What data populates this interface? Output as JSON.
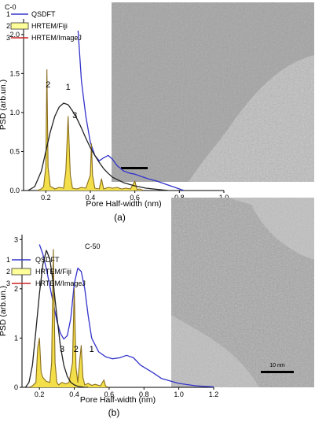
{
  "chart_data": [
    {
      "type": "line",
      "panel_label": "(a)",
      "sample_label": "C-0",
      "xlabel": "Pore  Half-width (nm)",
      "ylabel": "PSD (arb.un.)",
      "xlim": [
        0.1,
        1.0
      ],
      "ylim": [
        0,
        2.2
      ],
      "xticks": [
        {
          "v": 0.2,
          "label": "0.2"
        },
        {
          "v": 0.4,
          "label": "0.4"
        },
        {
          "v": 0.6,
          "label": "0.6"
        },
        {
          "v": 0.8,
          "label": "0.8"
        },
        {
          "v": 1.0,
          "label": "1.0"
        }
      ],
      "yticks": [
        {
          "v": 0.0,
          "label": "0.0"
        },
        {
          "v": 0.5,
          "label": "0.5"
        },
        {
          "v": 1.0,
          "label": "1.0"
        },
        {
          "v": 1.5,
          "label": "1.5"
        },
        {
          "v": 2.0,
          "label": "2.0"
        }
      ],
      "legend": [
        {
          "num": "1",
          "name": "QSDFT",
          "style": "line",
          "color": "#3333cc"
        },
        {
          "num": "2",
          "name": "HRTEM/Fiji",
          "style": "box",
          "color": "#ffff99"
        },
        {
          "num": "3",
          "name": "HRTEM/ImageJ",
          "style": "line",
          "color": "#cc2222"
        }
      ],
      "series": [
        {
          "name": "QSDFT",
          "color": "#3333cc",
          "fill": null,
          "x": [
            0.345,
            0.36,
            0.38,
            0.4,
            0.42,
            0.44,
            0.46,
            0.48,
            0.5,
            0.52,
            0.55,
            0.58,
            0.6,
            0.63,
            0.66,
            0.7,
            0.74,
            0.78,
            0.8,
            0.82
          ],
          "y": [
            2.05,
            1.4,
            0.95,
            0.62,
            0.45,
            0.38,
            0.42,
            0.45,
            0.4,
            0.32,
            0.25,
            0.22,
            0.21,
            0.18,
            0.15,
            0.12,
            0.08,
            0.04,
            0.02,
            0.0
          ]
        },
        {
          "name": "HRTEM/Fiji",
          "color": "#8a6d1d",
          "fill": "#f2df4a",
          "x": [
            0.16,
            0.18,
            0.19,
            0.2,
            0.205,
            0.21,
            0.22,
            0.23,
            0.24,
            0.26,
            0.28,
            0.29,
            0.3,
            0.31,
            0.32,
            0.34,
            0.36,
            0.38,
            0.4,
            0.405,
            0.41,
            0.42,
            0.44,
            0.45,
            0.46,
            0.48,
            0.5,
            0.52,
            0.54,
            0.56,
            0.58,
            0.6,
            0.61,
            0.62,
            0.64
          ],
          "y": [
            0,
            0.02,
            0.05,
            0.3,
            1.55,
            0.3,
            0.05,
            0.04,
            0.02,
            0.04,
            0.03,
            0.25,
            0.95,
            0.2,
            0.03,
            0.02,
            0.04,
            0.03,
            0.2,
            0.6,
            0.2,
            0.03,
            0.02,
            0.15,
            0.02,
            0.04,
            0.03,
            0.04,
            0.02,
            0.03,
            0.02,
            0.12,
            0.01,
            0.02,
            0
          ]
        },
        {
          "name": "HRTEM/ImageJ",
          "color": "#222222",
          "fill": null,
          "x": [
            0.12,
            0.15,
            0.18,
            0.2,
            0.22,
            0.24,
            0.26,
            0.28,
            0.3,
            0.32,
            0.34,
            0.36,
            0.38,
            0.4,
            0.42,
            0.44,
            0.46,
            0.48,
            0.5,
            0.55,
            0.6,
            0.65,
            0.7,
            0.75
          ],
          "y": [
            0.0,
            0.05,
            0.25,
            0.5,
            0.75,
            0.95,
            1.07,
            1.12,
            1.1,
            1.02,
            0.92,
            0.8,
            0.67,
            0.55,
            0.45,
            0.36,
            0.28,
            0.22,
            0.17,
            0.1,
            0.06,
            0.03,
            0.015,
            0.0
          ]
        }
      ],
      "curve_labels": [
        {
          "text": "2",
          "x": 0.21,
          "y": 1.32
        },
        {
          "text": "1",
          "x": 0.3,
          "y": 1.29
        },
        {
          "text": "3",
          "x": 0.33,
          "y": 0.93
        }
      ],
      "inset": {
        "type": "HRTEM micrograph",
        "scalebar_label": ""
      }
    },
    {
      "type": "line",
      "panel_label": "(b)",
      "sample_label": "C-50",
      "xlabel": "Pore  Half-width  (nm)",
      "ylabel": "PSD  (arb.un.)",
      "xlim": [
        0.1,
        1.2
      ],
      "ylim": [
        0,
        3.1
      ],
      "xticks": [
        {
          "v": 0.2,
          "label": "0.2"
        },
        {
          "v": 0.4,
          "label": "0.4"
        },
        {
          "v": 0.6,
          "label": "0.6"
        },
        {
          "v": 0.8,
          "label": "0.8"
        },
        {
          "v": 1.0,
          "label": "1.0"
        },
        {
          "v": 1.2,
          "label": "1.2"
        }
      ],
      "yticks": [
        {
          "v": 0,
          "label": "0"
        },
        {
          "v": 1,
          "label": "1"
        },
        {
          "v": 2,
          "label": "2"
        },
        {
          "v": 3,
          "label": "3"
        }
      ],
      "legend": [
        {
          "num": "1",
          "name": "QSDFT",
          "style": "line",
          "color": "#3333cc"
        },
        {
          "num": "2",
          "name": "HRTEM/Fiji",
          "style": "box",
          "color": "#ffff99"
        },
        {
          "num": "3",
          "name": "HRTEM/ImageJ",
          "style": "line",
          "color": "#cc2222"
        }
      ],
      "series": [
        {
          "name": "QSDFT",
          "color": "#3333cc",
          "fill": null,
          "x": [
            0.2,
            0.22,
            0.24,
            0.26,
            0.28,
            0.3,
            0.32,
            0.34,
            0.36,
            0.38,
            0.4,
            0.42,
            0.44,
            0.46,
            0.48,
            0.5,
            0.54,
            0.58,
            0.62,
            0.66,
            0.7,
            0.74,
            0.78,
            0.85,
            0.9,
            1.0,
            1.1,
            1.2
          ],
          "y": [
            2.9,
            2.7,
            2.4,
            2.05,
            1.7,
            1.35,
            1.1,
            0.98,
            1.05,
            1.4,
            2.1,
            2.42,
            2.35,
            2.0,
            1.45,
            1.0,
            0.72,
            0.62,
            0.58,
            0.6,
            0.65,
            0.6,
            0.45,
            0.3,
            0.18,
            0.08,
            0.03,
            0.01
          ]
        },
        {
          "name": "HRTEM/Fiji",
          "color": "#8a6d1d",
          "fill": "#f2df4a",
          "x": [
            0.14,
            0.16,
            0.18,
            0.19,
            0.2,
            0.21,
            0.22,
            0.24,
            0.26,
            0.27,
            0.28,
            0.29,
            0.3,
            0.31,
            0.33,
            0.35,
            0.37,
            0.39,
            0.4,
            0.41,
            0.42,
            0.43,
            0.44,
            0.45,
            0.46,
            0.48,
            0.5,
            0.52,
            0.55,
            0.57,
            0.58,
            0.6
          ],
          "y": [
            0,
            0.03,
            0.1,
            0.8,
            1.0,
            0.3,
            0.2,
            0.12,
            0.1,
            0.5,
            2.8,
            0.5,
            0.1,
            0.05,
            0.1,
            0.07,
            0.1,
            0.5,
            2.0,
            0.4,
            0.1,
            0.5,
            0.85,
            0.2,
            0.05,
            0.08,
            0.04,
            0.06,
            0.03,
            0.15,
            0.02,
            0
          ]
        },
        {
          "name": "HRTEM/ImageJ",
          "color": "#222222",
          "fill": null,
          "x": [
            0.12,
            0.14,
            0.16,
            0.18,
            0.2,
            0.22,
            0.24,
            0.26,
            0.28,
            0.3,
            0.32,
            0.34,
            0.36,
            0.38,
            0.4,
            0.42,
            0.44,
            0.46,
            0.48
          ],
          "y": [
            0.0,
            0.1,
            0.45,
            1.15,
            1.9,
            2.5,
            2.78,
            2.6,
            2.1,
            1.45,
            0.85,
            0.45,
            0.22,
            0.1,
            0.05,
            0.02,
            0.01,
            0.0,
            0.0
          ]
        }
      ],
      "curve_labels": [
        {
          "text": "3",
          "x": 0.33,
          "y": 0.72
        },
        {
          "text": "2",
          "x": 0.41,
          "y": 0.72
        },
        {
          "text": "1",
          "x": 0.5,
          "y": 0.72
        }
      ],
      "inset": {
        "type": "HRTEM micrograph",
        "scalebar_label": "10 nm"
      }
    }
  ]
}
